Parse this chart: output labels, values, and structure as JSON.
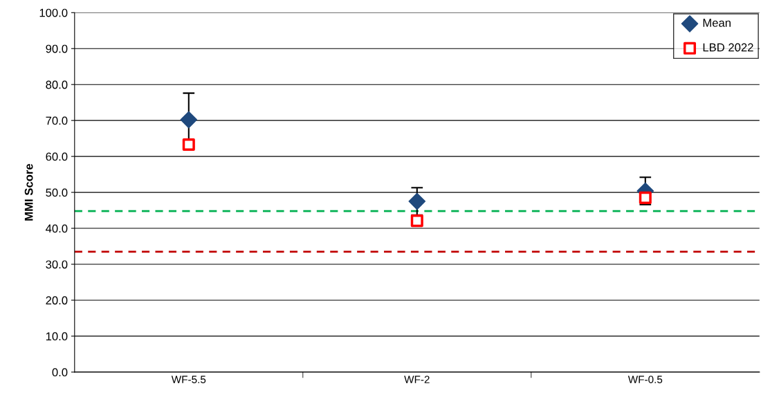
{
  "chart_data": {
    "type": "scatter",
    "ylabel": "MMI Score",
    "categories": [
      "WF-5.5",
      "WF-2",
      "WF-0.5"
    ],
    "series": [
      {
        "name": "Mean",
        "color": "#1f497d",
        "marker": "diamond",
        "values": [
          70.2,
          47.5,
          50.4
        ],
        "errors": [
          7.4,
          3.8,
          3.8
        ]
      },
      {
        "name": "LBD 2022",
        "color": "#ff0000",
        "marker": "square",
        "values": [
          63.3,
          42.1,
          48.5
        ]
      }
    ],
    "ylim": [
      0,
      100
    ],
    "yticks": [
      {
        "value": 0,
        "label": "0.0"
      },
      {
        "value": 10,
        "label": "10.0"
      },
      {
        "value": 20,
        "label": "20.0"
      },
      {
        "value": 30,
        "label": "30.0"
      },
      {
        "value": 40,
        "label": "40.0"
      },
      {
        "value": 50,
        "label": "50.0"
      },
      {
        "value": 60,
        "label": "60.0"
      },
      {
        "value": 70,
        "label": "70.0"
      },
      {
        "value": 80,
        "label": "80.0"
      },
      {
        "value": 90,
        "label": "90.0"
      },
      {
        "value": 100,
        "label": "100.0"
      }
    ],
    "ref_lines": [
      {
        "axis": "y",
        "value": 44.8,
        "color": "#00b050",
        "line_style": "dashed"
      },
      {
        "axis": "y",
        "value": 33.5,
        "color": "#c00000",
        "line_style": "dashed"
      }
    ],
    "grid": "y",
    "legend": "top right"
  }
}
